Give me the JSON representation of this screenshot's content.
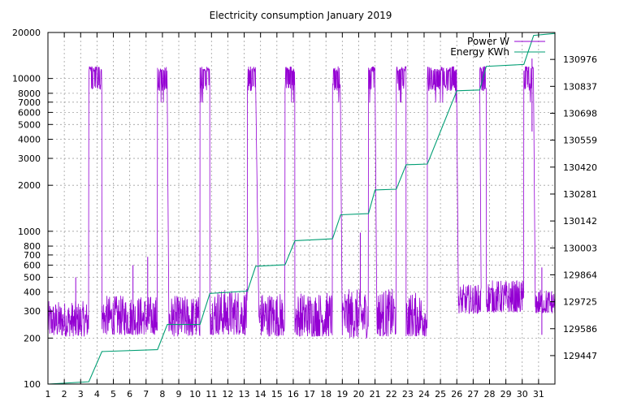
{
  "chart_data": {
    "type": "line",
    "title": "Electricity consumption January 2019",
    "x": {
      "range": [
        1,
        32
      ],
      "ticks": [
        1,
        2,
        3,
        4,
        5,
        6,
        7,
        8,
        9,
        10,
        11,
        12,
        13,
        14,
        15,
        16,
        17,
        18,
        19,
        20,
        21,
        22,
        23,
        24,
        25,
        26,
        27,
        28,
        29,
        30,
        31
      ],
      "tick_labels": [
        "1",
        "2",
        "3",
        "4",
        "5",
        "6",
        "7",
        "8",
        "9",
        "10",
        "11",
        "12",
        "13",
        "14",
        "15",
        "16",
        "17",
        "18",
        "19",
        "20",
        "21",
        "22",
        "23",
        "24",
        "25",
        "26",
        "27",
        "28",
        "29",
        "30",
        "31"
      ]
    },
    "y_left": {
      "scale": "log",
      "range": [
        100,
        20000
      ],
      "ticks": [
        100,
        200,
        300,
        400,
        500,
        600,
        700,
        800,
        1000,
        2000,
        3000,
        4000,
        5000,
        6000,
        7000,
        8000,
        10000,
        20000
      ],
      "tick_labels": [
        "100",
        "200",
        "300",
        "400",
        "500",
        "600",
        "700",
        "800",
        "1000",
        "2000",
        "3000",
        "4000",
        "5000",
        "6000",
        "7000",
        "8000",
        "10000",
        "20000"
      ]
    },
    "y_right": {
      "scale": "linear",
      "range": [
        129300,
        131115
      ],
      "ticks": [
        129447,
        129586,
        129725,
        129864,
        130003,
        130142,
        130281,
        130420,
        130559,
        130698,
        130837,
        130976
      ],
      "tick_labels": [
        "129447",
        "129586",
        "129725",
        "129864",
        "130003",
        "130142",
        "130281",
        "130420",
        "130559",
        "130698",
        "130837",
        "130976"
      ]
    },
    "grid": true,
    "legend_position": "top-right",
    "series": [
      {
        "name": "Power W",
        "axis": "left",
        "color": "#9400d3",
        "base_segments": [
          {
            "x0": 1.0,
            "x1": 3.5,
            "low": 205,
            "high": 350
          },
          {
            "x0": 4.3,
            "x1": 7.7,
            "low": 210,
            "high": 380
          },
          {
            "x0": 8.4,
            "x1": 10.3,
            "low": 205,
            "high": 380
          },
          {
            "x0": 10.9,
            "x1": 13.2,
            "low": 210,
            "high": 420
          },
          {
            "x0": 13.9,
            "x1": 15.5,
            "low": 205,
            "high": 400
          },
          {
            "x0": 16.1,
            "x1": 18.4,
            "low": 205,
            "high": 400
          },
          {
            "x0": 19.0,
            "x1": 20.6,
            "low": 200,
            "high": 420
          },
          {
            "x0": 21.1,
            "x1": 22.3,
            "low": 205,
            "high": 420
          },
          {
            "x0": 22.9,
            "x1": 24.2,
            "low": 205,
            "high": 400
          },
          {
            "x0": 26.1,
            "x1": 27.5,
            "low": 290,
            "high": 450
          },
          {
            "x0": 27.8,
            "x1": 30.1,
            "low": 295,
            "high": 480
          },
          {
            "x0": 30.8,
            "x1": 32.0,
            "low": 290,
            "high": 420
          }
        ],
        "high_blocks": [
          {
            "x0": 3.5,
            "x1": 4.3
          },
          {
            "x0": 7.7,
            "x1": 8.3
          },
          {
            "x0": 10.3,
            "x1": 10.9
          },
          {
            "x0": 13.2,
            "x1": 13.7
          },
          {
            "x0": 15.5,
            "x1": 16.1
          },
          {
            "x0": 18.4,
            "x1": 18.9
          },
          {
            "x0": 20.6,
            "x1": 21.0
          },
          {
            "x0": 22.3,
            "x1": 22.9
          },
          {
            "x0": 24.2,
            "x1": 26.0
          },
          {
            "x0": 27.4,
            "x1": 27.8
          },
          {
            "x0": 30.1,
            "x1": 30.7
          }
        ],
        "high_level": {
          "low": 8700,
          "high": 12000
        },
        "spikes": [
          {
            "x": 2.7,
            "y": 500
          },
          {
            "x": 7.1,
            "y": 680
          },
          {
            "x": 6.2,
            "y": 600
          },
          {
            "x": 20.1,
            "y": 980
          },
          {
            "x": 30.6,
            "y": 13500
          },
          {
            "x": 31.2,
            "y": 580
          }
        ]
      },
      {
        "name": "Energy KWh",
        "axis": "right",
        "color": "#009e73",
        "points": [
          {
            "x": 1.0,
            "y": 129300
          },
          {
            "x": 3.5,
            "y": 129312
          },
          {
            "x": 4.3,
            "y": 129468
          },
          {
            "x": 7.7,
            "y": 129478
          },
          {
            "x": 8.3,
            "y": 129608
          },
          {
            "x": 10.3,
            "y": 129608
          },
          {
            "x": 10.9,
            "y": 129768
          },
          {
            "x": 13.2,
            "y": 129780
          },
          {
            "x": 13.7,
            "y": 129908
          },
          {
            "x": 15.5,
            "y": 129916
          },
          {
            "x": 16.1,
            "y": 130040
          },
          {
            "x": 18.4,
            "y": 130050
          },
          {
            "x": 18.9,
            "y": 130174
          },
          {
            "x": 20.6,
            "y": 130180
          },
          {
            "x": 21.0,
            "y": 130302
          },
          {
            "x": 22.3,
            "y": 130306
          },
          {
            "x": 22.9,
            "y": 130432
          },
          {
            "x": 24.2,
            "y": 130436
          },
          {
            "x": 26.0,
            "y": 130814
          },
          {
            "x": 27.4,
            "y": 130818
          },
          {
            "x": 27.8,
            "y": 130940
          },
          {
            "x": 30.1,
            "y": 130950
          },
          {
            "x": 30.7,
            "y": 131100
          },
          {
            "x": 32.0,
            "y": 131110
          }
        ]
      }
    ]
  }
}
